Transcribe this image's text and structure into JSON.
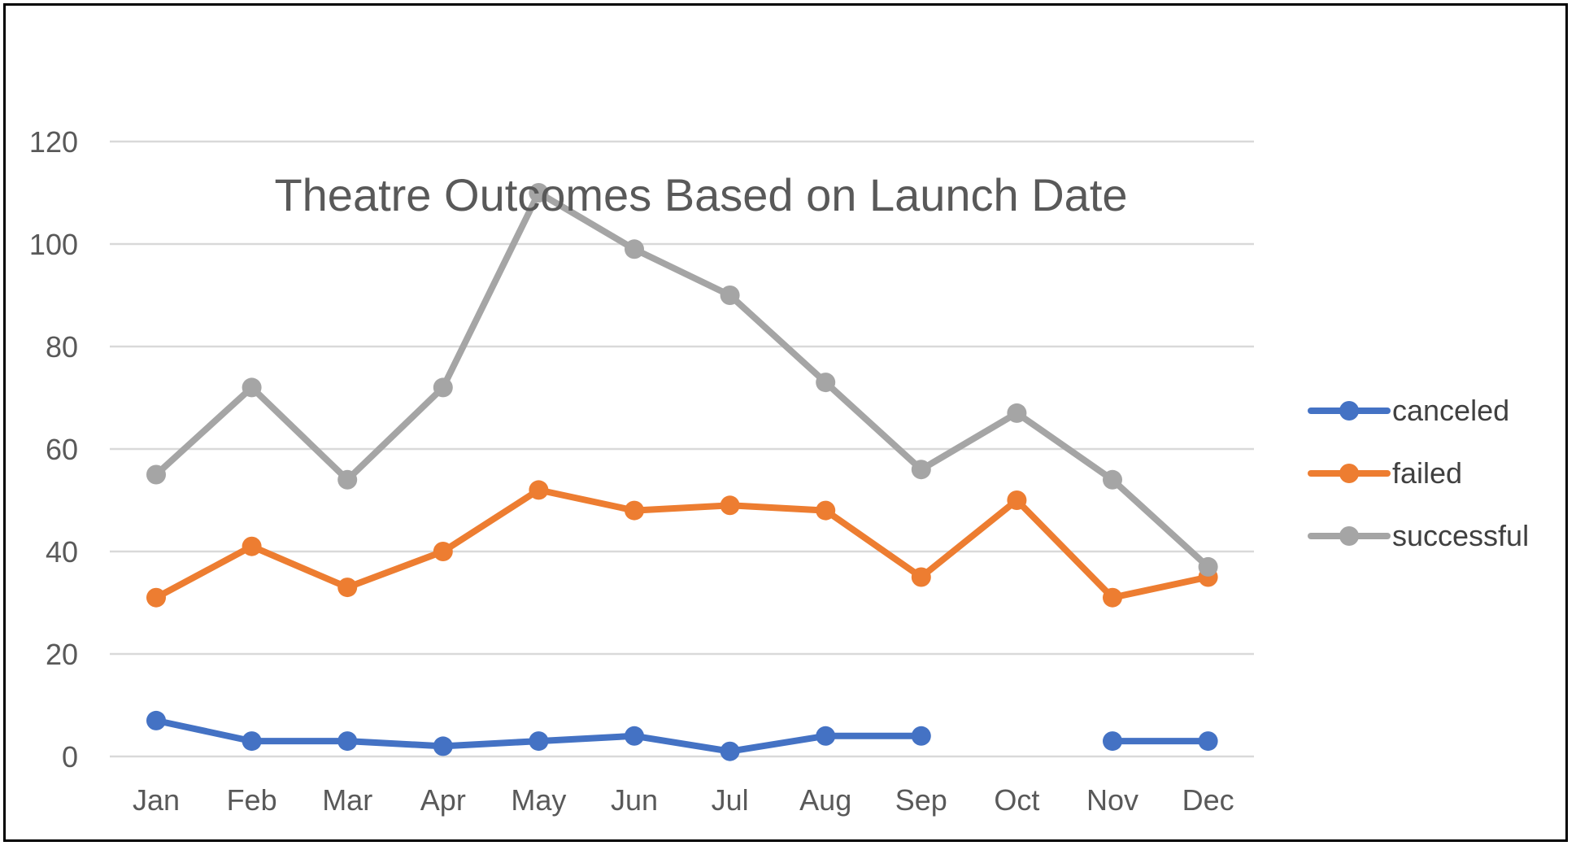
{
  "chart_data": {
    "type": "line",
    "title": "Theatre Outcomes Based on Launch Date",
    "xlabel": "",
    "ylabel": "",
    "categories": [
      "Jan",
      "Feb",
      "Mar",
      "Apr",
      "May",
      "Jun",
      "Jul",
      "Aug",
      "Sep",
      "Oct",
      "Nov",
      "Dec"
    ],
    "ylim": [
      0,
      120
    ],
    "yticks": [
      0,
      20,
      40,
      60,
      80,
      100,
      120
    ],
    "grid": true,
    "legend_position": "right",
    "series": [
      {
        "name": "canceled",
        "color": "#4472C4",
        "values": [
          7,
          3,
          3,
          2,
          3,
          4,
          1,
          4,
          4,
          null,
          3,
          3
        ]
      },
      {
        "name": "failed",
        "color": "#ED7D31",
        "values": [
          31,
          41,
          33,
          40,
          52,
          48,
          49,
          48,
          35,
          50,
          31,
          35
        ]
      },
      {
        "name": "successful",
        "color": "#A5A5A5",
        "values": [
          55,
          72,
          54,
          72,
          110,
          99,
          90,
          73,
          56,
          67,
          54,
          37
        ]
      }
    ]
  }
}
